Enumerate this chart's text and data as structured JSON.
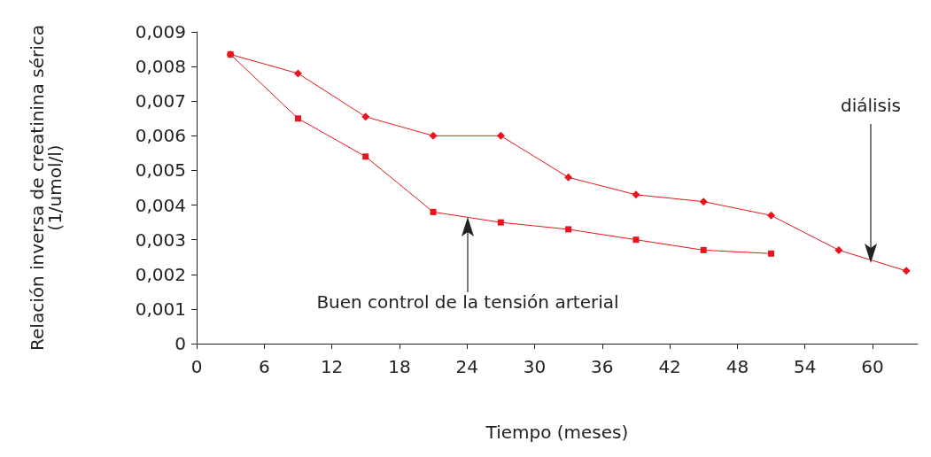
{
  "chart_data": {
    "type": "line",
    "xlabel": "Tiempo (meses)",
    "ylabel": "Relación inversa de creatinina sérica\n(1/umol/l)",
    "series": [
      {
        "color": "#e8141e",
        "marker": "diamond",
        "x": [
          3,
          9,
          15,
          21,
          27,
          33,
          39,
          45,
          51,
          57,
          63
        ],
        "values": [
          0.00835,
          0.0078,
          0.00655,
          0.006,
          0.006,
          0.0048,
          0.0043,
          0.0041,
          0.0037,
          0.0027,
          0.0021
        ]
      },
      {
        "color": "#e8141e",
        "marker": "square",
        "x": [
          3,
          9,
          15,
          21,
          27,
          33,
          39,
          45,
          51
        ],
        "values": [
          0.00835,
          0.0065,
          0.0054,
          0.0038,
          0.0035,
          0.0033,
          0.003,
          0.0027,
          0.0026
        ]
      }
    ],
    "xlim": [
      0,
      64
    ],
    "xticks": [
      0,
      6,
      12,
      18,
      24,
      30,
      36,
      42,
      48,
      54,
      60
    ],
    "ylim": [
      0,
      0.009
    ],
    "yticks": [
      0,
      {
        "value": 0.001,
        "label": "0,001"
      },
      {
        "value": 0.002,
        "label": "0,002"
      },
      {
        "value": 0.003,
        "label": "0,003"
      },
      {
        "value": 0.004,
        "label": "0,004"
      },
      {
        "value": 0.005,
        "label": "0,005"
      },
      {
        "value": 0.006,
        "label": "0,006"
      },
      {
        "value": 0.007,
        "label": "0,007"
      },
      {
        "value": 0.008,
        "label": "0,008"
      },
      {
        "value": 0.009,
        "label": "0,009"
      }
    ],
    "grid": false,
    "line_style": "solid",
    "annotations": [
      "diálisis",
      "Buen control de la tensión arterial"
    ]
  }
}
